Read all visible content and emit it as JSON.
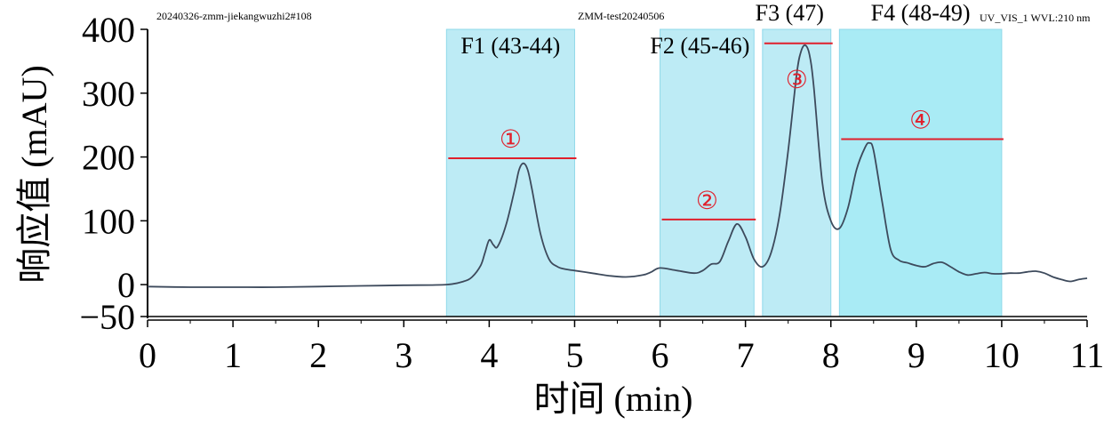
{
  "chart_data": {
    "type": "line",
    "header_left": "20240326-zmm-jiekangwuzhi2#108",
    "header_center": "ZMM-test20240506",
    "header_right": "UV_VIS_1 WVL:210 nm",
    "xlabel": "时间 (min)",
    "ylabel": "响应值 (mAU)",
    "xlim": [
      0,
      11
    ],
    "ylim": [
      -50,
      400
    ],
    "xticks": [
      0,
      1,
      2,
      3,
      4,
      5,
      6,
      7,
      8,
      9,
      10,
      11
    ],
    "yticks": [
      -50,
      0,
      100,
      200,
      300,
      400
    ],
    "series": [
      {
        "color": "#3d4a5c",
        "x": [
          0,
          0.5,
          1,
          1.5,
          2,
          2.5,
          3,
          3.5,
          3.7,
          3.8,
          3.9,
          3.95,
          4.0,
          4.05,
          4.1,
          4.2,
          4.3,
          4.35,
          4.4,
          4.45,
          4.5,
          4.6,
          4.7,
          4.8,
          4.9,
          5.0,
          5.2,
          5.4,
          5.6,
          5.8,
          5.9,
          6.0,
          6.2,
          6.4,
          6.5,
          6.6,
          6.7,
          6.8,
          6.9,
          7.0,
          7.1,
          7.2,
          7.3,
          7.4,
          7.5,
          7.6,
          7.65,
          7.7,
          7.75,
          7.8,
          7.9,
          8.0,
          8.1,
          8.2,
          8.3,
          8.4,
          8.45,
          8.5,
          8.6,
          8.7,
          8.8,
          8.9,
          9.0,
          9.1,
          9.2,
          9.3,
          9.4,
          9.5,
          9.6,
          9.7,
          9.8,
          9.9,
          10.0,
          10.1,
          10.2,
          10.3,
          10.4,
          10.5,
          10.6,
          10.7,
          10.8,
          10.9,
          11.0
        ],
        "y": [
          -3,
          -4,
          -4,
          -4,
          -3,
          -2,
          -1,
          0,
          5,
          12,
          30,
          50,
          70,
          62,
          60,
          95,
          150,
          180,
          190,
          180,
          150,
          80,
          40,
          28,
          24,
          22,
          18,
          14,
          12,
          15,
          20,
          26,
          22,
          18,
          22,
          32,
          36,
          68,
          95,
          75,
          40,
          28,
          50,
          110,
          210,
          330,
          365,
          375,
          360,
          310,
          160,
          100,
          88,
          120,
          180,
          215,
          222,
          210,
          130,
          55,
          38,
          34,
          30,
          28,
          33,
          35,
          28,
          20,
          15,
          17,
          19,
          17,
          17,
          18,
          18,
          20,
          21,
          18,
          12,
          8,
          5,
          8,
          10
        ]
      }
    ],
    "fractions": [
      {
        "label": "F1 (43-44)",
        "x_start": 3.5,
        "x_end": 5.0,
        "marker": "①",
        "line_y": 198,
        "fill": "#bdebf5"
      },
      {
        "label": "F2 (45-46)",
        "x_start": 6.0,
        "x_end": 7.1,
        "marker": "②",
        "line_y": 102,
        "fill": "#bdebf5"
      },
      {
        "label": "F3 (47)",
        "x_start": 7.2,
        "x_end": 8.0,
        "marker": "③",
        "line_y": 378,
        "fill": "#bdebf5"
      },
      {
        "label": "F4 (48-49)",
        "x_start": 8.1,
        "x_end": 10.0,
        "marker": "④",
        "line_y": 228,
        "fill": "#a9ebf5"
      }
    ],
    "grid": false
  }
}
